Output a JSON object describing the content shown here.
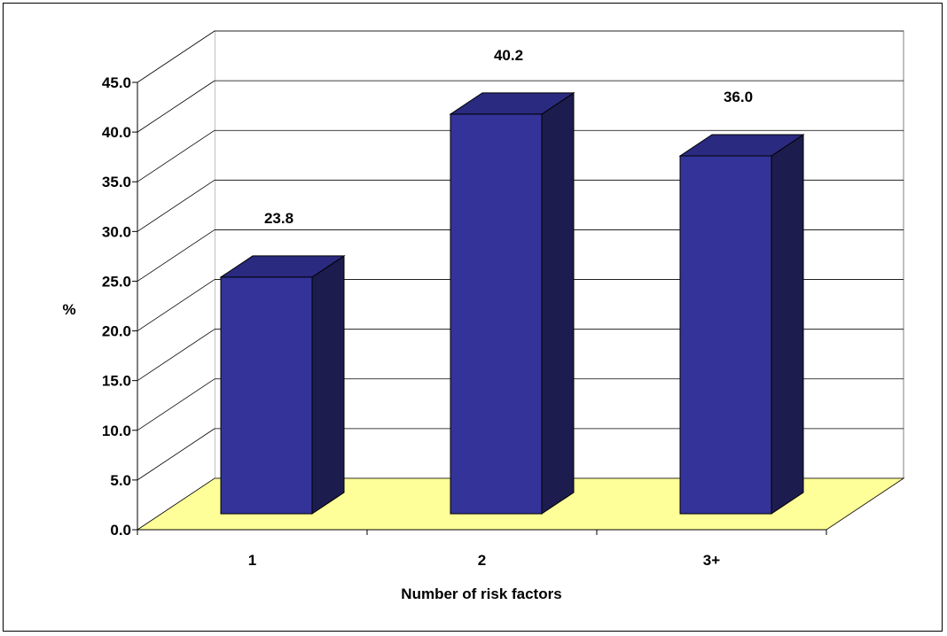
{
  "chart_data": {
    "type": "bar",
    "style": "3d-column",
    "categories": [
      "1",
      "2",
      "3+"
    ],
    "values": [
      23.8,
      40.2,
      36.0
    ],
    "value_labels": [
      "23.8",
      "40.2",
      "36.0"
    ],
    "title": "",
    "xlabel": "Number of risk factors",
    "ylabel": "%",
    "ylim": [
      0,
      45
    ],
    "yticks": [
      "0.0",
      "5.0",
      "10.0",
      "15.0",
      "20.0",
      "25.0",
      "30.0",
      "35.0",
      "40.0",
      "45.0"
    ],
    "grid": true,
    "legend": "none",
    "colors": {
      "bar_front": "#333399",
      "bar_top": "#2a2a80",
      "bar_side": "#1c1c4e",
      "floor": "#ffff99",
      "grid": "#000000",
      "walls": "#ffffff"
    }
  }
}
